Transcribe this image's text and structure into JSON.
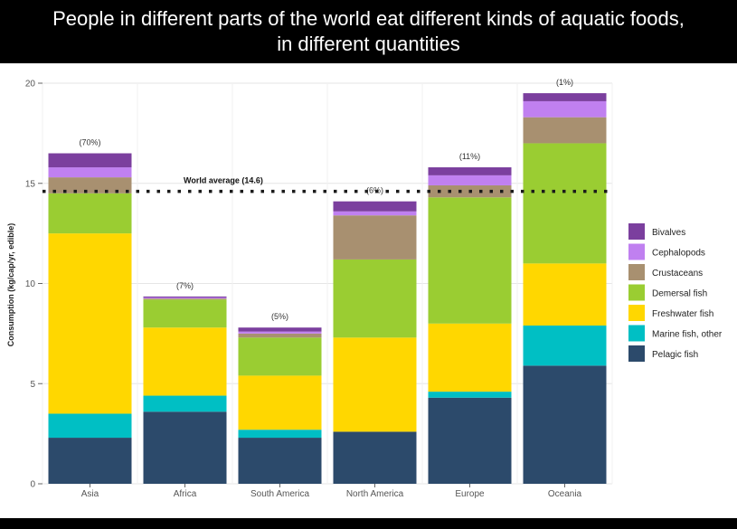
{
  "title": "People in different parts of the world eat different kinds of aquatic foods, in different quantities",
  "chart_data": {
    "type": "bar",
    "stacked": true,
    "categories": [
      "Asia",
      "Africa",
      "South America",
      "North America",
      "Europe",
      "Oceania"
    ],
    "shares": [
      "(70%)",
      "(7%)",
      "(5%)",
      "(6%)",
      "(11%)",
      "(1%)"
    ],
    "ylabel": "Consumption (kg/cap/yr, edible)",
    "ylim": [
      0,
      20
    ],
    "yticks": [
      0,
      5,
      10,
      15,
      20
    ],
    "grid": true,
    "legend_position": "right",
    "reference_line": {
      "label": "World average (14.6)",
      "value": 14.6
    },
    "series": [
      {
        "name": "Pelagic fish",
        "color": "#2c4a6b",
        "values": [
          2.3,
          3.6,
          2.3,
          2.6,
          4.3,
          5.9
        ]
      },
      {
        "name": "Marine fish, other",
        "color": "#00bfc4",
        "values": [
          1.2,
          0.8,
          0.4,
          0.0,
          0.3,
          2.0
        ]
      },
      {
        "name": "Freshwater fish",
        "color": "#ffd700",
        "values": [
          9.0,
          3.4,
          2.7,
          4.7,
          3.4,
          3.1
        ]
      },
      {
        "name": "Demersal fish",
        "color": "#9acd32",
        "values": [
          2.0,
          1.4,
          1.9,
          3.9,
          6.3,
          6.0
        ]
      },
      {
        "name": "Crustaceans",
        "color": "#a89070",
        "values": [
          0.8,
          0.05,
          0.2,
          2.2,
          0.6,
          1.3
        ]
      },
      {
        "name": "Cephalopods",
        "color": "#c080f0",
        "values": [
          0.5,
          0.05,
          0.1,
          0.2,
          0.5,
          0.8
        ]
      },
      {
        "name": "Bivalves",
        "color": "#7b3f9e",
        "values": [
          0.7,
          0.05,
          0.2,
          0.5,
          0.4,
          0.4
        ]
      }
    ]
  }
}
